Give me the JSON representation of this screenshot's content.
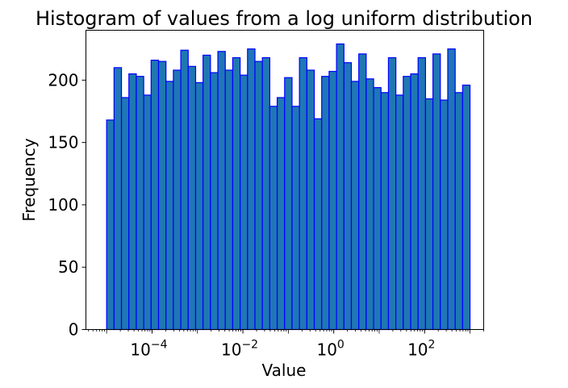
{
  "chart_data": {
    "type": "bar",
    "title": "Histogram of values from a log uniform distribution",
    "xlabel": "Value",
    "ylabel": "Frequency",
    "x_scale": "log",
    "xlim": [
      3.5e-06,
      2000
    ],
    "ylim": [
      0,
      240
    ],
    "bin_range": [
      1e-05,
      1000
    ],
    "x_ticks": [
      {
        "value": 0.0001,
        "base": "10",
        "exp": "−4"
      },
      {
        "value": 0.01,
        "base": "10",
        "exp": "−2"
      },
      {
        "value": 1,
        "base": "10",
        "exp": "0"
      },
      {
        "value": 100,
        "base": "10",
        "exp": "2"
      }
    ],
    "y_ticks": [
      {
        "value": 0,
        "label": "0"
      },
      {
        "value": 50,
        "label": "50"
      },
      {
        "value": 100,
        "label": "100"
      },
      {
        "value": 150,
        "label": "150"
      },
      {
        "value": 200,
        "label": "200"
      }
    ],
    "values": [
      168,
      210,
      186,
      205,
      203,
      188,
      216,
      215,
      199,
      208,
      224,
      211,
      198,
      220,
      206,
      223,
      208,
      218,
      204,
      225,
      215,
      218,
      179,
      186,
      202,
      179,
      218,
      208,
      169,
      203,
      207,
      229,
      214,
      199,
      221,
      201,
      194,
      190,
      218,
      188,
      203,
      205,
      218,
      185,
      221,
      184,
      225,
      190,
      196
    ],
    "bar_fill": "#1f77b4",
    "bar_edge": "#0000ff",
    "grid": false
  }
}
